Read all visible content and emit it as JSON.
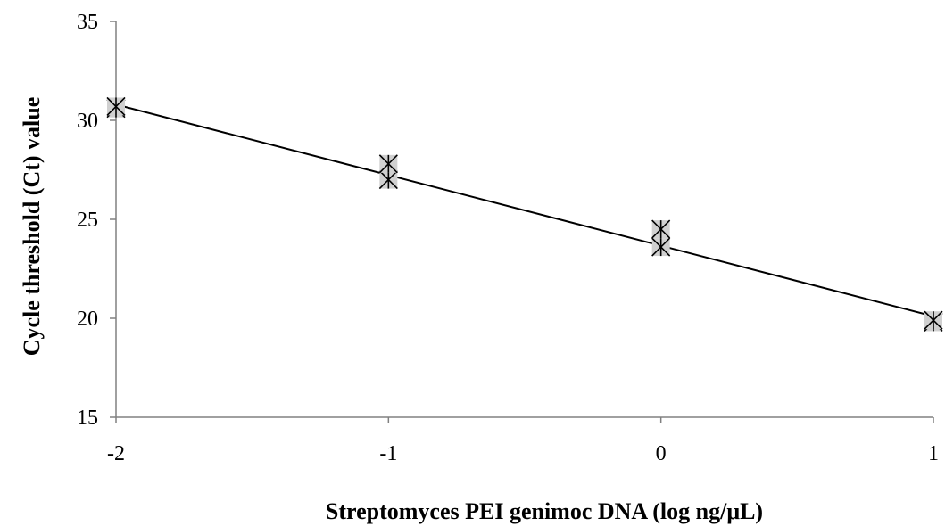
{
  "chart_data": {
    "type": "scatter",
    "title": "",
    "xlabel": "Streptomyces  PEI genimoc DNA (log ng/μL)",
    "ylabel": "Cycle threshold (Ct) value",
    "xlim": [
      -2,
      1
    ],
    "ylim": [
      15,
      35
    ],
    "x_ticks": [
      "-2",
      "-1",
      "0",
      "1"
    ],
    "y_ticks": [
      "15",
      "20",
      "25",
      "30",
      "35"
    ],
    "grid": false,
    "legend": "none",
    "series": [
      {
        "points": [
          {
            "x": -2,
            "y": 30.6
          },
          {
            "x": -2,
            "y": 30.7
          },
          {
            "x": -1,
            "y": 27.0
          },
          {
            "x": -1,
            "y": 27.8
          },
          {
            "x": 0,
            "y": 23.6
          },
          {
            "x": 0,
            "y": 24.5
          },
          {
            "x": 1,
            "y": 19.8
          },
          {
            "x": 1,
            "y": 19.9
          }
        ]
      }
    ],
    "trendline": {
      "type": "linear",
      "x": [
        -2,
        1
      ],
      "y": [
        30.8,
        20.1
      ]
    },
    "colors": {
      "marker_fill": "#d0d0d0",
      "marker_stroke": "#000000",
      "line": "#000000",
      "axis": "#808080"
    }
  }
}
